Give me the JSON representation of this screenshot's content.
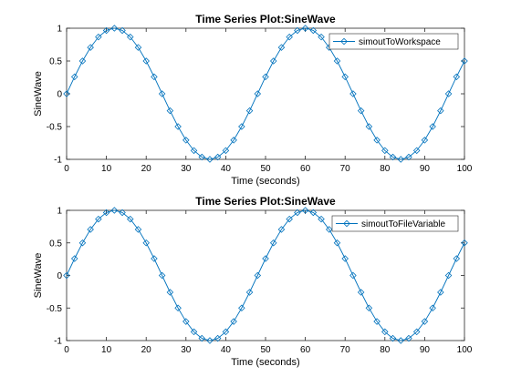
{
  "chart_data": [
    {
      "type": "line",
      "title": "Time Series Plot:SineWave",
      "xlabel": "Time (seconds)",
      "ylabel": "SineWave",
      "xlim": [
        0,
        100
      ],
      "ylim": [
        -1,
        1
      ],
      "xticks": [
        "0",
        "10",
        "20",
        "30",
        "40",
        "50",
        "60",
        "70",
        "80",
        "90",
        "100"
      ],
      "yticks": [
        "1",
        "0.5",
        "0",
        "-0.5",
        "-1"
      ],
      "grid": false,
      "legend_position": "top-right",
      "line_color": "#0072BD",
      "marker": "diamond",
      "series": [
        {
          "name": "simoutToWorkspace",
          "x": [
            0,
            2,
            4,
            6,
            8,
            10,
            12,
            14,
            16,
            18,
            20,
            22,
            24,
            26,
            28,
            30,
            32,
            34,
            36,
            38,
            40,
            42,
            44,
            46,
            48,
            50,
            52,
            54,
            56,
            58,
            60,
            62,
            64,
            66,
            68,
            70,
            72,
            74,
            76,
            78,
            80,
            82,
            84,
            86,
            88,
            90,
            92,
            94,
            96,
            98,
            100
          ],
          "y": [
            0,
            0.2588,
            0.5,
            0.7071,
            0.866,
            0.9659,
            1,
            0.9659,
            0.866,
            0.7071,
            0.5,
            0.2588,
            0,
            -0.2588,
            -0.5,
            -0.7071,
            -0.866,
            -0.9659,
            -1,
            -0.9659,
            -0.866,
            -0.7071,
            -0.5,
            -0.2588,
            0,
            0.2588,
            0.5,
            0.7071,
            0.866,
            0.9659,
            1,
            0.9659,
            0.866,
            0.7071,
            0.5,
            0.2588,
            0,
            -0.2588,
            -0.5,
            -0.7071,
            -0.866,
            -0.9659,
            -1,
            -0.9659,
            -0.866,
            -0.7071,
            -0.5,
            -0.2588,
            0,
            0.2588,
            0.5
          ]
        }
      ]
    },
    {
      "type": "line",
      "title": "Time Series Plot:SineWave",
      "xlabel": "Time (seconds)",
      "ylabel": "SineWave",
      "xlim": [
        0,
        100
      ],
      "ylim": [
        -1,
        1
      ],
      "xticks": [
        "0",
        "10",
        "20",
        "30",
        "40",
        "50",
        "60",
        "70",
        "80",
        "90",
        "100"
      ],
      "yticks": [
        "1",
        "0.5",
        "0",
        "-0.5",
        "-1"
      ],
      "grid": false,
      "legend_position": "top-right",
      "line_color": "#0072BD",
      "marker": "diamond",
      "series": [
        {
          "name": "simoutToFileVariable",
          "x": [
            0,
            2,
            4,
            6,
            8,
            10,
            12,
            14,
            16,
            18,
            20,
            22,
            24,
            26,
            28,
            30,
            32,
            34,
            36,
            38,
            40,
            42,
            44,
            46,
            48,
            50,
            52,
            54,
            56,
            58,
            60,
            62,
            64,
            66,
            68,
            70,
            72,
            74,
            76,
            78,
            80,
            82,
            84,
            86,
            88,
            90,
            92,
            94,
            96,
            98,
            100
          ],
          "y": [
            0,
            0.2588,
            0.5,
            0.7071,
            0.866,
            0.9659,
            1,
            0.9659,
            0.866,
            0.7071,
            0.5,
            0.2588,
            0,
            -0.2588,
            -0.5,
            -0.7071,
            -0.866,
            -0.9659,
            -1,
            -0.9659,
            -0.866,
            -0.7071,
            -0.5,
            -0.2588,
            0,
            0.2588,
            0.5,
            0.7071,
            0.866,
            0.9659,
            1,
            0.9659,
            0.866,
            0.7071,
            0.5,
            0.2588,
            0,
            -0.2588,
            -0.5,
            -0.7071,
            -0.866,
            -0.9659,
            -1,
            -0.9659,
            -0.866,
            -0.7071,
            -0.5,
            -0.2588,
            0,
            0.2588,
            0.5
          ]
        }
      ]
    }
  ]
}
